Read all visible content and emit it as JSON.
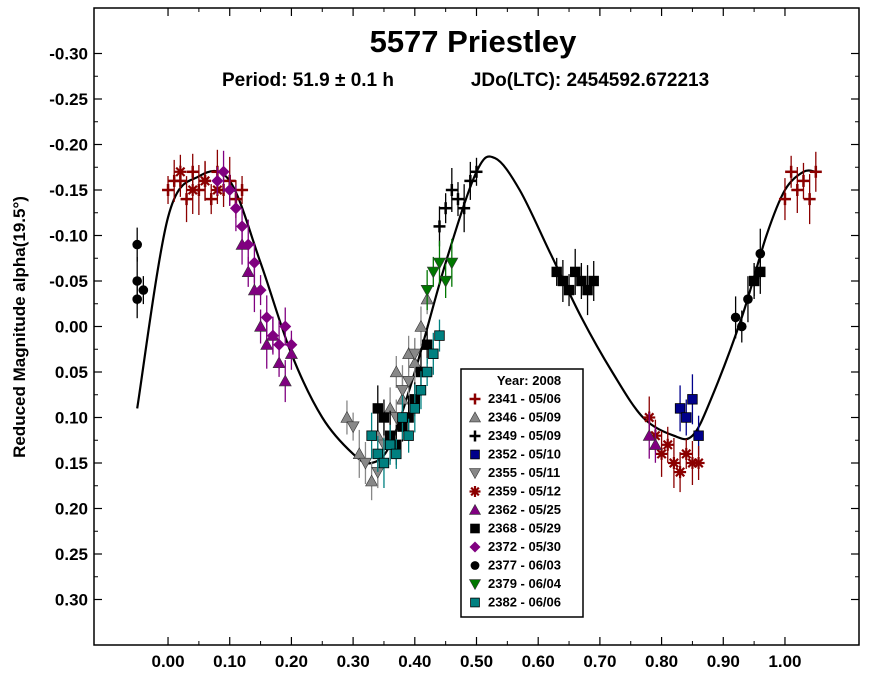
{
  "chart_data": {
    "type": "scatter",
    "title": "5577 Priestley",
    "subtitle_period": "Period: 51.9 ± 0.1 h",
    "subtitle_epoch": "JDo(LTC): 2454592.672213",
    "ylabel": "Reduced Magnitude alpha(19.5°)",
    "xlabel": "",
    "xlim": [
      -0.12,
      1.12
    ],
    "ylim": [
      -0.35,
      0.35
    ],
    "y_inverted": true,
    "x_ticks": [
      "0.00",
      "0.10",
      "0.20",
      "0.30",
      "0.40",
      "0.50",
      "0.60",
      "0.70",
      "0.80",
      "0.90",
      "1.00"
    ],
    "y_ticks": [
      "-0.30",
      "-0.25",
      "-0.20",
      "-0.15",
      "-0.10",
      "-0.05",
      "0.00",
      "0.05",
      "0.10",
      "0.15",
      "0.20",
      "0.25",
      "0.30"
    ],
    "legend": {
      "title": "Year: 2008",
      "position": "bottom-center"
    },
    "fit_curve": [
      [
        -0.05,
        0.09
      ],
      [
        0.0,
        -0.12
      ],
      [
        0.05,
        -0.165
      ],
      [
        0.1,
        -0.16
      ],
      [
        0.15,
        -0.07
      ],
      [
        0.2,
        0.03
      ],
      [
        0.25,
        0.1
      ],
      [
        0.3,
        0.14
      ],
      [
        0.33,
        0.15
      ],
      [
        0.36,
        0.13
      ],
      [
        0.4,
        0.05
      ],
      [
        0.45,
        -0.07
      ],
      [
        0.5,
        -0.17
      ],
      [
        0.53,
        -0.185
      ],
      [
        0.57,
        -0.15
      ],
      [
        0.62,
        -0.08
      ],
      [
        0.67,
        -0.01
      ],
      [
        0.72,
        0.05
      ],
      [
        0.77,
        0.1
      ],
      [
        0.82,
        0.12
      ],
      [
        0.85,
        0.12
      ],
      [
        0.88,
        0.08
      ],
      [
        0.93,
        -0.01
      ],
      [
        0.97,
        -0.1
      ],
      [
        1.0,
        -0.15
      ],
      [
        1.03,
        -0.17
      ],
      [
        1.05,
        -0.17
      ]
    ],
    "series": [
      {
        "name": "2341 - 05/06",
        "color": "#8b0000",
        "marker": "plus",
        "points": [
          [
            0.0,
            -0.15
          ],
          [
            0.01,
            -0.16
          ],
          [
            0.02,
            -0.16
          ],
          [
            0.03,
            -0.14
          ],
          [
            0.04,
            -0.17
          ],
          [
            0.05,
            -0.15
          ],
          [
            0.06,
            -0.16
          ],
          [
            0.07,
            -0.14
          ],
          [
            0.08,
            -0.17
          ],
          [
            0.09,
            -0.15
          ],
          [
            0.1,
            -0.16
          ],
          [
            0.11,
            -0.14
          ],
          [
            0.12,
            -0.15
          ],
          [
            1.0,
            -0.14
          ],
          [
            1.01,
            -0.17
          ],
          [
            1.02,
            -0.15
          ],
          [
            1.03,
            -0.16
          ],
          [
            1.04,
            -0.14
          ],
          [
            1.05,
            -0.17
          ]
        ]
      },
      {
        "name": "2346 - 05/09",
        "color": "#888888",
        "marker": "triangle",
        "points": [
          [
            0.29,
            0.1
          ],
          [
            0.31,
            0.14
          ],
          [
            0.33,
            0.17
          ],
          [
            0.34,
            0.12
          ],
          [
            0.36,
            0.09
          ],
          [
            0.37,
            0.05
          ],
          [
            0.38,
            0.08
          ],
          [
            0.39,
            0.03
          ],
          [
            0.4,
            0.04
          ],
          [
            0.41,
            0.0
          ],
          [
            0.42,
            -0.03
          ]
        ]
      },
      {
        "name": "2349 - 05/09",
        "color": "#000000",
        "marker": "plus",
        "points": [
          [
            0.44,
            -0.11
          ],
          [
            0.45,
            -0.13
          ],
          [
            0.46,
            -0.15
          ],
          [
            0.47,
            -0.14
          ],
          [
            0.48,
            -0.13
          ],
          [
            0.49,
            -0.16
          ],
          [
            0.5,
            -0.17
          ]
        ]
      },
      {
        "name": "2352 - 05/10",
        "color": "#00008b",
        "marker": "square",
        "points": [
          [
            0.83,
            0.09
          ],
          [
            0.84,
            0.1
          ],
          [
            0.85,
            0.08
          ],
          [
            0.86,
            0.12
          ]
        ]
      },
      {
        "name": "2355 - 05/11",
        "color": "#888888",
        "marker": "triangle-down",
        "points": [
          [
            0.3,
            0.11
          ],
          [
            0.32,
            0.15
          ],
          [
            0.34,
            0.16
          ],
          [
            0.35,
            0.13
          ],
          [
            0.37,
            0.1
          ],
          [
            0.38,
            0.07
          ],
          [
            0.39,
            0.06
          ],
          [
            0.4,
            0.03
          ]
        ]
      },
      {
        "name": "2359 - 05/12",
        "color": "#8b0000",
        "marker": "asterisk",
        "points": [
          [
            0.02,
            -0.17
          ],
          [
            0.04,
            -0.15
          ],
          [
            0.06,
            -0.16
          ],
          [
            0.08,
            -0.15
          ],
          [
            0.78,
            0.1
          ],
          [
            0.79,
            0.12
          ],
          [
            0.8,
            0.14
          ],
          [
            0.81,
            0.13
          ],
          [
            0.82,
            0.15
          ],
          [
            0.83,
            0.16
          ],
          [
            0.84,
            0.14
          ],
          [
            0.85,
            0.15
          ],
          [
            0.86,
            0.15
          ]
        ]
      },
      {
        "name": "2362 - 05/25",
        "color": "#800080",
        "marker": "triangle",
        "points": [
          [
            0.12,
            -0.09
          ],
          [
            0.13,
            -0.06
          ],
          [
            0.14,
            -0.04
          ],
          [
            0.15,
            0.0
          ],
          [
            0.16,
            0.02
          ],
          [
            0.17,
            0.01
          ],
          [
            0.18,
            0.04
          ],
          [
            0.19,
            0.06
          ],
          [
            0.2,
            0.03
          ],
          [
            0.78,
            0.12
          ],
          [
            0.79,
            0.13
          ]
        ]
      },
      {
        "name": "2368 - 05/29",
        "color": "#000000",
        "marker": "square",
        "points": [
          [
            0.34,
            0.09
          ],
          [
            0.35,
            0.1
          ],
          [
            0.36,
            0.12
          ],
          [
            0.37,
            0.13
          ],
          [
            0.38,
            0.11
          ],
          [
            0.39,
            0.1
          ],
          [
            0.4,
            0.08
          ],
          [
            0.41,
            0.05
          ],
          [
            0.42,
            0.02
          ],
          [
            0.63,
            -0.06
          ],
          [
            0.64,
            -0.05
          ],
          [
            0.65,
            -0.04
          ],
          [
            0.66,
            -0.06
          ],
          [
            0.67,
            -0.05
          ],
          [
            0.68,
            -0.04
          ],
          [
            0.69,
            -0.05
          ],
          [
            0.95,
            -0.05
          ],
          [
            0.96,
            -0.06
          ]
        ]
      },
      {
        "name": "2372 - 05/30",
        "color": "#800080",
        "marker": "diamond",
        "points": [
          [
            0.08,
            -0.16
          ],
          [
            0.09,
            -0.17
          ],
          [
            0.1,
            -0.15
          ],
          [
            0.11,
            -0.13
          ],
          [
            0.12,
            -0.11
          ],
          [
            0.13,
            -0.09
          ],
          [
            0.14,
            -0.07
          ],
          [
            0.15,
            -0.04
          ],
          [
            0.16,
            -0.01
          ],
          [
            0.17,
            0.01
          ],
          [
            0.18,
            0.02
          ],
          [
            0.19,
            0.0
          ],
          [
            0.2,
            0.02
          ]
        ]
      },
      {
        "name": "2377 - 06/03",
        "color": "#000000",
        "marker": "circle",
        "points": [
          [
            -0.05,
            -0.09
          ],
          [
            -0.05,
            -0.05
          ],
          [
            -0.05,
            -0.03
          ],
          [
            -0.04,
            -0.04
          ],
          [
            0.92,
            -0.01
          ],
          [
            0.93,
            0.0
          ],
          [
            0.94,
            -0.03
          ],
          [
            0.95,
            -0.05
          ],
          [
            0.96,
            -0.08
          ]
        ]
      },
      {
        "name": "2379 - 06/04",
        "color": "#007700",
        "marker": "triangle-down",
        "points": [
          [
            0.42,
            -0.04
          ],
          [
            0.43,
            -0.06
          ],
          [
            0.44,
            -0.07
          ],
          [
            0.45,
            -0.05
          ],
          [
            0.46,
            -0.07
          ]
        ]
      },
      {
        "name": "2382 - 06/06",
        "color": "#008080",
        "marker": "square",
        "points": [
          [
            0.33,
            0.12
          ],
          [
            0.34,
            0.14
          ],
          [
            0.35,
            0.15
          ],
          [
            0.36,
            0.13
          ],
          [
            0.37,
            0.14
          ],
          [
            0.38,
            0.1
          ],
          [
            0.39,
            0.12
          ],
          [
            0.4,
            0.09
          ],
          [
            0.41,
            0.07
          ],
          [
            0.42,
            0.05
          ],
          [
            0.43,
            0.03
          ],
          [
            0.44,
            0.01
          ]
        ]
      }
    ]
  }
}
